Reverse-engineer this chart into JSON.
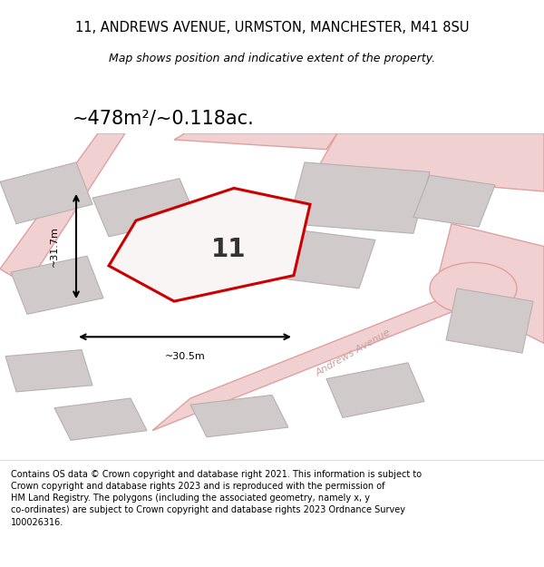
{
  "title_line1": "11, ANDREWS AVENUE, URMSTON, MANCHESTER, M41 8SU",
  "title_line2": "Map shows position and indicative extent of the property.",
  "area_label": "~478m²/~0.118ac.",
  "property_number": "11",
  "width_label": "~30.5m",
  "height_label": "~31.7m",
  "street_label": "Andrews Avenue",
  "footer": "Contains OS data © Crown copyright and database right 2021. This information is subject to\nCrown copyright and database rights 2023 and is reproduced with the permission of\nHM Land Registry. The polygons (including the associated geometry, namely x, y\nco-ordinates) are subject to Crown copyright and database rights 2023 Ordnance Survey\n100026316.",
  "map_bg": "#f7f2f2",
  "road_fill": "#f0d0d0",
  "road_edge": "#e0a0a0",
  "building_fill": "#d0caca",
  "building_edge": "#b8b0b0",
  "property_fill": "#faf5f5",
  "property_outline": "#cc0000",
  "title_color": "#000000",
  "footer_color": "#000000",
  "street_text_color": "#c8a0a0"
}
